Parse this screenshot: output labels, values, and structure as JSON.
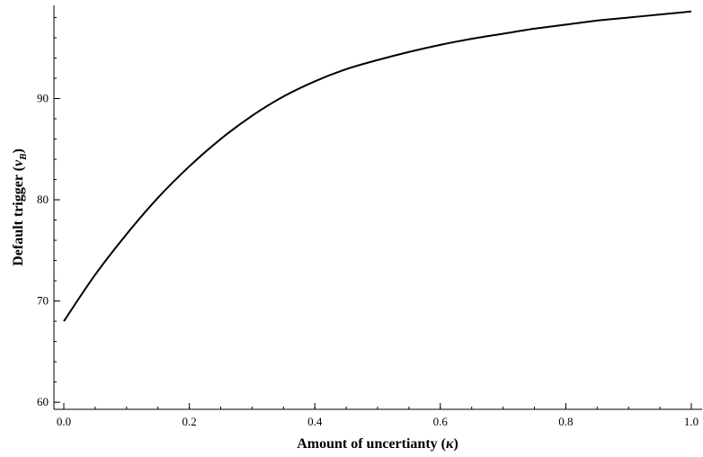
{
  "chart_data": {
    "type": "line",
    "title": "",
    "xlabel": "Amount of uncertianty (κ)",
    "xlabel_main": "Amount of uncertianty (",
    "xlabel_symbol": "κ",
    "xlabel_close": ")",
    "ylabel": "Default trigger (v_B)",
    "ylabel_main": "Default trigger (",
    "ylabel_symbol": "v",
    "ylabel_sub": "B",
    "ylabel_close": ")",
    "xlim": [
      0,
      1
    ],
    "ylim": [
      59.3,
      99.2
    ],
    "grid": false,
    "x_ticks": [
      {
        "value": 0.0,
        "label": "0.0"
      },
      {
        "value": 0.2,
        "label": "0.2"
      },
      {
        "value": 0.4,
        "label": "0.4"
      },
      {
        "value": 0.6,
        "label": "0.6"
      },
      {
        "value": 0.8,
        "label": "0.8"
      },
      {
        "value": 1.0,
        "label": "1.0"
      }
    ],
    "y_ticks": [
      {
        "value": 60,
        "label": "60"
      },
      {
        "value": 70,
        "label": "70"
      },
      {
        "value": 80,
        "label": "80"
      },
      {
        "value": 90,
        "label": "90"
      }
    ],
    "x_minor_step": 0.05,
    "y_minor_step": 2,
    "series": [
      {
        "color": "#000000",
        "x": [
          0.0,
          0.05,
          0.1,
          0.15,
          0.2,
          0.25,
          0.3,
          0.35,
          0.4,
          0.45,
          0.5,
          0.55,
          0.6,
          0.65,
          0.7,
          0.75,
          0.8,
          0.85,
          0.9,
          0.95,
          1.0
        ],
        "y": [
          68.0,
          72.6,
          76.6,
          80.2,
          83.3,
          86.0,
          88.3,
          90.2,
          91.7,
          92.9,
          93.8,
          94.6,
          95.3,
          95.9,
          96.4,
          96.9,
          97.3,
          97.7,
          98.0,
          98.3,
          98.6
        ]
      }
    ]
  }
}
